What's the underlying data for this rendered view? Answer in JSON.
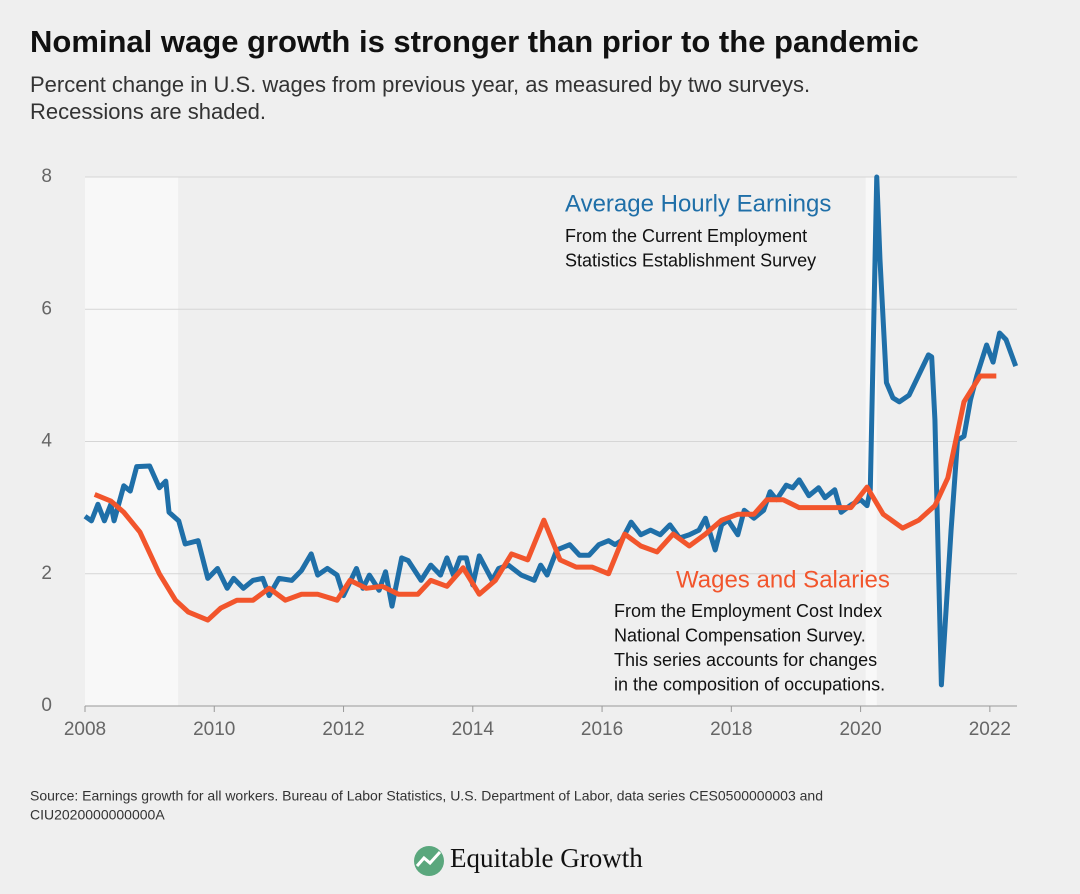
{
  "chart_data": {
    "type": "line",
    "title": "Nominal wage growth is stronger than prior to the pandemic",
    "subtitle": [
      "Percent change in U.S. wages from previous year, as measured by two surveys.",
      "Recessions are shaded."
    ],
    "xlim": [
      2008,
      2022.42
    ],
    "xticks": [
      2008,
      2010,
      2012,
      2014,
      2016,
      2018,
      2020,
      2022
    ],
    "ylim": [
      0,
      8
    ],
    "yticks": [
      0,
      2,
      4,
      6,
      8
    ],
    "grid": true,
    "recessions": [
      [
        2008,
        2009.44
      ],
      [
        2020.08,
        2020.25
      ]
    ],
    "series": [
      {
        "name": "Average Hourly Earnings",
        "color": "#1f6fa8",
        "x": [
          2008,
          2008.1,
          2008.2,
          2008.3,
          2008.4,
          2008.45,
          2008.6,
          2008.7,
          2008.8,
          2009,
          2009.15,
          2009.25,
          2009.3,
          2009.45,
          2009.55,
          2009.75,
          2009.9,
          2010.05,
          2010.2,
          2010.3,
          2010.45,
          2010.6,
          2010.75,
          2010.85,
          2011,
          2011.2,
          2011.35,
          2011.5,
          2011.6,
          2011.75,
          2011.9,
          2012,
          2012.2,
          2012.3,
          2012.4,
          2012.55,
          2012.65,
          2012.75,
          2012.9,
          2013,
          2013.2,
          2013.35,
          2013.5,
          2013.6,
          2013.7,
          2013.8,
          2013.9,
          2014,
          2014.1,
          2014.3,
          2014.4,
          2014.55,
          2014.75,
          2014.95,
          2015.05,
          2015.15,
          2015.3,
          2015.5,
          2015.65,
          2015.8,
          2015.95,
          2016.1,
          2016.2,
          2016.3,
          2016.45,
          2016.6,
          2016.75,
          2016.9,
          2017.05,
          2017.2,
          2017.35,
          2017.5,
          2017.6,
          2017.75,
          2017.85,
          2017.95,
          2018.1,
          2018.2,
          2018.35,
          2018.5,
          2018.6,
          2018.7,
          2018.85,
          2018.95,
          2019.05,
          2019.2,
          2019.35,
          2019.45,
          2019.6,
          2019.7,
          2019.85,
          2020,
          2020.1,
          2020.15,
          2020.25,
          2020.3,
          2020.4,
          2020.5,
          2020.6,
          2020.75,
          2021.05,
          2021.1,
          2021.15,
          2021.25,
          2021.4,
          2021.5,
          2021.6,
          2021.7,
          2021.8,
          2021.95,
          2022.05,
          2022.15,
          2022.25,
          2022.4
        ],
        "values": [
          2.87,
          2.8,
          3.05,
          2.8,
          3.05,
          2.8,
          3.33,
          3.25,
          3.62,
          3.63,
          3.3,
          3.4,
          2.93,
          2.8,
          2.45,
          2.5,
          1.93,
          2.08,
          1.78,
          1.93,
          1.78,
          1.9,
          1.93,
          1.67,
          1.93,
          1.9,
          2.05,
          2.3,
          1.98,
          2.08,
          1.98,
          1.67,
          2.08,
          1.78,
          1.98,
          1.75,
          2.03,
          1.51,
          2.24,
          2.2,
          1.9,
          2.13,
          1.98,
          2.24,
          1.98,
          2.24,
          2.24,
          1.83,
          2.27,
          1.9,
          2.08,
          2.13,
          1.98,
          1.9,
          2.13,
          1.98,
          2.36,
          2.44,
          2.28,
          2.28,
          2.44,
          2.5,
          2.44,
          2.5,
          2.78,
          2.59,
          2.66,
          2.59,
          2.74,
          2.54,
          2.59,
          2.66,
          2.84,
          2.36,
          2.74,
          2.81,
          2.59,
          2.96,
          2.84,
          2.96,
          3.24,
          3.12,
          3.34,
          3.3,
          3.42,
          3.18,
          3.3,
          3.15,
          3.27,
          2.93,
          3.04,
          3.12,
          3.03,
          3.27,
          8,
          6.75,
          4.89,
          4.66,
          4.6,
          4.7,
          5.31,
          5.28,
          4.33,
          0.32,
          2.66,
          4.02,
          4.08,
          4.63,
          5,
          5.46,
          5.2,
          5.64,
          5.54,
          5.14
        ]
      },
      {
        "name": "Wages and Salaries",
        "color": "#f2552c",
        "x": [
          2008.15,
          2008.4,
          2008.6,
          2008.85,
          2009.15,
          2009.4,
          2009.6,
          2009.9,
          2010.1,
          2010.35,
          2010.6,
          2010.85,
          2011.1,
          2011.35,
          2011.6,
          2011.9,
          2012.1,
          2012.35,
          2012.6,
          2012.85,
          2013.15,
          2013.35,
          2013.6,
          2013.85,
          2014.1,
          2014.35,
          2014.6,
          2014.85,
          2015.1,
          2015.35,
          2015.6,
          2015.85,
          2016.1,
          2016.35,
          2016.6,
          2016.85,
          2017.1,
          2017.35,
          2017.6,
          2017.85,
          2018.1,
          2018.35,
          2018.55,
          2018.8,
          2019.05,
          2019.3,
          2019.55,
          2019.85,
          2020.1,
          2020.35,
          2020.65,
          2020.9,
          2021.15,
          2021.35,
          2021.6,
          2021.85,
          2022.1
        ],
        "values": [
          3.2,
          3.1,
          2.93,
          2.63,
          2,
          1.6,
          1.42,
          1.3,
          1.48,
          1.6,
          1.6,
          1.78,
          1.6,
          1.69,
          1.69,
          1.6,
          1.9,
          1.78,
          1.81,
          1.69,
          1.69,
          1.9,
          1.81,
          2.09,
          1.69,
          1.9,
          2.3,
          2.21,
          2.81,
          2.21,
          2.1,
          2.1,
          2,
          2.6,
          2.42,
          2.33,
          2.6,
          2.42,
          2.6,
          2.81,
          2.9,
          2.9,
          3.12,
          3.12,
          3,
          3,
          3,
          3,
          3.31,
          2.9,
          2.69,
          2.81,
          3.03,
          3.45,
          4.6,
          4.99,
          4.99
        ]
      }
    ],
    "annotations": [
      {
        "lines": [
          "From the Current Employment",
          "Statistics Establishment Survey"
        ]
      },
      {
        "lines": [
          "From the Employment Cost Index",
          "National Compensation Survey.",
          "This series accounts for changes",
          "in the composition of occupations."
        ]
      }
    ],
    "source": [
      "Source: Earnings growth for all workers. Bureau of Labor Statistics, U.S. Department of Labor, data series CES0500000003 and",
      "CIU2020000000000A"
    ],
    "logo": "Equitable Growth"
  }
}
